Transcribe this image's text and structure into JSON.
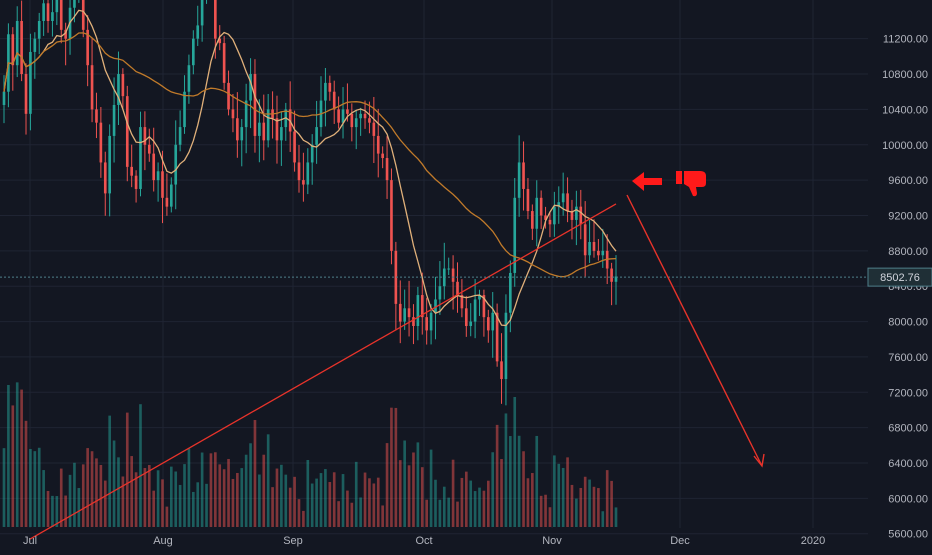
{
  "chart_data": {
    "type": "candlestick",
    "title": "",
    "price_axis": {
      "ticks": [
        "11200.00",
        "10800.00",
        "10400.00",
        "10000.00",
        "9600.00",
        "9200.00",
        "8800.00",
        "8400.00",
        "8000.00",
        "7600.00",
        "7200.00",
        "6800.00",
        "6400.00",
        "6000.00",
        "5600.00"
      ],
      "range": [
        5450,
        11400
      ]
    },
    "current_price": {
      "value": 8502.76,
      "label": "8502.76"
    },
    "time_axis": {
      "labels": [
        "Jul",
        "Aug",
        "Sep",
        "Oct",
        "Nov",
        "Dec",
        "2020"
      ]
    },
    "closes": [
      10600,
      11250,
      10900,
      11400,
      10800,
      10350,
      11050,
      11200,
      11400,
      11600,
      11400,
      11500,
      11650,
      11300,
      11200,
      11550,
      11700,
      11900,
      11300,
      10900,
      10400,
      10250,
      9800,
      9450,
      10100,
      10450,
      10800,
      10550,
      9750,
      9650,
      9500,
      10200,
      10000,
      9900,
      9600,
      9700,
      9400,
      9300,
      9550,
      10000,
      10200,
      10600,
      10900,
      11200,
      11350,
      11850,
      11950,
      11800,
      11200,
      11150,
      10700,
      10400,
      10300,
      10050,
      10200,
      10500,
      10800,
      10100,
      10250,
      10050,
      10400,
      10300,
      10050,
      10200,
      10400,
      10150,
      9800,
      9600,
      9550,
      9800,
      10000,
      10200,
      10500,
      10700,
      10600,
      10400,
      10250,
      10400,
      10350,
      10200,
      10300,
      10350,
      10300,
      10250,
      10100,
      9900,
      9850,
      9600,
      8800,
      8200,
      8000,
      8150,
      8050,
      7950,
      8300,
      8050,
      7900,
      8100,
      8250,
      8400,
      8600,
      8600,
      8450,
      8300,
      8150,
      7950,
      8000,
      8250,
      8300,
      8050,
      7900,
      8100,
      7550,
      7350,
      8100,
      8550,
      9400,
      9800,
      9500,
      9250,
      9050,
      9400,
      9200,
      9150,
      9100,
      9300,
      9350,
      9450,
      9250,
      9150,
      9300,
      9100,
      8750,
      8900,
      8800,
      8750,
      8800,
      8600,
      8450,
      8510
    ],
    "volume_note": "volume bars shown at bottom, green = up, red = down",
    "annotations": [
      {
        "type": "arrow",
        "label": "projected decline arrow"
      },
      {
        "type": "icon",
        "label": "thumbs-down"
      }
    ]
  }
}
